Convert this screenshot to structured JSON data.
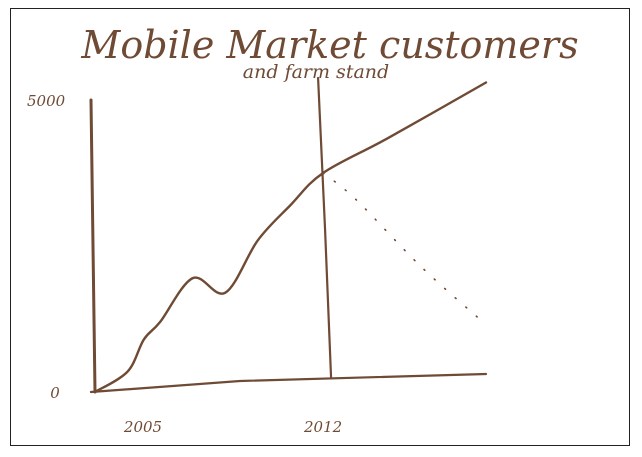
{
  "colors": {
    "ink": "#6f4a34",
    "frame": "#222222",
    "background": "#ffffff"
  },
  "chart_data": {
    "type": "line",
    "title": "Mobile Market customers",
    "subtitle": "and farm stand",
    "xlabel": "",
    "ylabel": "",
    "x_ticks": [
      {
        "x": 2005,
        "label": "2005"
      },
      {
        "x": 2012,
        "label": "2012"
      }
    ],
    "y_ticks": [
      {
        "y": 0,
        "label": "0"
      },
      {
        "y": 5000,
        "label": "5000"
      }
    ],
    "xlim": [
      2005,
      2017
    ],
    "ylim": [
      0,
      5000
    ],
    "grid": false,
    "legend": "none",
    "marker_line": {
      "x": 2012
    },
    "series": [
      {
        "style": "solid",
        "points": [
          {
            "x": 2005,
            "y": 0
          },
          {
            "x": 2006,
            "y": 350
          },
          {
            "x": 2006.5,
            "y": 900
          },
          {
            "x": 2007,
            "y": 1200
          },
          {
            "x": 2008,
            "y": 1950
          },
          {
            "x": 2009,
            "y": 1700
          },
          {
            "x": 2010,
            "y": 2600
          },
          {
            "x": 2011,
            "y": 3200
          },
          {
            "x": 2012,
            "y": 3750
          },
          {
            "x": 2014,
            "y": 4350
          },
          {
            "x": 2017,
            "y": 5300
          }
        ]
      },
      {
        "style": "dashed",
        "points": [
          {
            "x": 2012,
            "y": 3750
          },
          {
            "x": 2013,
            "y": 3300
          },
          {
            "x": 2015,
            "y": 2150
          },
          {
            "x": 2016.8,
            "y": 1250
          }
        ]
      }
    ]
  }
}
